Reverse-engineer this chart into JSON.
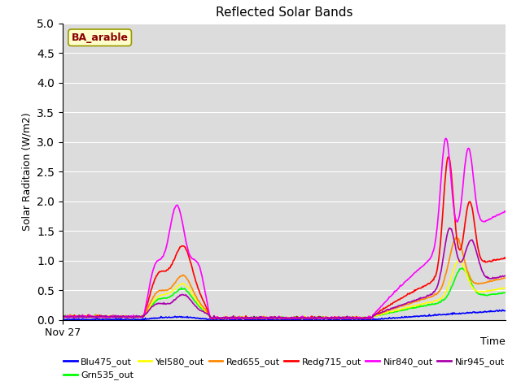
{
  "title": "Reflected Solar Bands",
  "ylabel": "Solar Raditaion (W/m2)",
  "xlabel": "Time",
  "x_tick_label": "Nov 27",
  "ylim": [
    0.0,
    5.0
  ],
  "yticks": [
    0.0,
    0.5,
    1.0,
    1.5,
    2.0,
    2.5,
    3.0,
    3.5,
    4.0,
    4.5,
    5.0
  ],
  "annotation_text": "BA_arable",
  "annotation_color": "#8B0000",
  "annotation_bg": "#FFFFCC",
  "annotation_edge": "#999900",
  "lines": [
    {
      "label": "Blu475_out",
      "color": "#0000FF",
      "lw": 1.2
    },
    {
      "label": "Grn535_out",
      "color": "#00FF00",
      "lw": 1.2
    },
    {
      "label": "Yel580_out",
      "color": "#FFFF00",
      "lw": 1.2
    },
    {
      "label": "Red655_out",
      "color": "#FF8800",
      "lw": 1.2
    },
    {
      "label": "Redg715_out",
      "color": "#FF0000",
      "lw": 1.2
    },
    {
      "label": "Nir840_out",
      "color": "#FF00FF",
      "lw": 1.2
    },
    {
      "label": "Nir945_out",
      "color": "#AA00AA",
      "lw": 1.2
    }
  ],
  "plot_bg": "#DCDCDC",
  "fig_bg": "#FFFFFF"
}
